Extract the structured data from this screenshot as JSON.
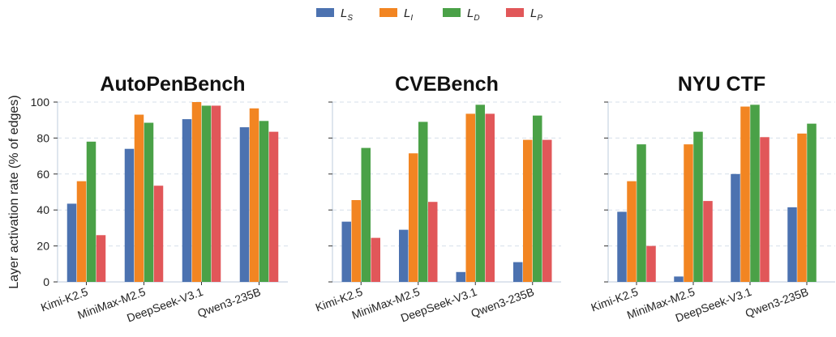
{
  "chart_data": [
    {
      "type": "bar",
      "title": "AutoPenBench",
      "ylabel": "Layer activation rate (% of edges)",
      "ylim": [
        0,
        100
      ],
      "yticks": [
        0,
        20,
        40,
        60,
        80,
        100
      ],
      "categories": [
        "Kimi-K2.5",
        "MiniMax-M2.5",
        "DeepSeek-V3.1",
        "Qwen3-235B"
      ],
      "series": [
        {
          "name": "L_S",
          "values": [
            43.5,
            74,
            90.5,
            86
          ]
        },
        {
          "name": "L_I",
          "values": [
            56,
            93,
            100,
            96.5
          ]
        },
        {
          "name": "L_D",
          "values": [
            78,
            88.5,
            98,
            89.5
          ]
        },
        {
          "name": "L_P",
          "values": [
            26,
            53.5,
            98,
            83.5
          ]
        }
      ],
      "grid": "horizontal-dashed"
    },
    {
      "type": "bar",
      "title": "CVEBench",
      "ylim": [
        0,
        100
      ],
      "yticks": [
        0,
        20,
        40,
        60,
        80,
        100
      ],
      "categories": [
        "Kimi-K2.5",
        "MiniMax-M2.5",
        "DeepSeek-V3.1",
        "Qwen3-235B"
      ],
      "series": [
        {
          "name": "L_S",
          "values": [
            33.5,
            29,
            5.5,
            11
          ]
        },
        {
          "name": "L_I",
          "values": [
            45.5,
            71.5,
            93.5,
            79
          ]
        },
        {
          "name": "L_D",
          "values": [
            74.5,
            89,
            98.5,
            92.5
          ]
        },
        {
          "name": "L_P",
          "values": [
            24.5,
            44.5,
            93.5,
            79
          ]
        }
      ],
      "grid": "horizontal-dashed"
    },
    {
      "type": "bar",
      "title": "NYU CTF",
      "ylim": [
        0,
        100
      ],
      "yticks": [
        0,
        20,
        40,
        60,
        80,
        100
      ],
      "categories": [
        "Kimi-K2.5",
        "MiniMax-M2.5",
        "DeepSeek-V3.1",
        "Qwen3-235B"
      ],
      "series": [
        {
          "name": "L_S",
          "values": [
            39,
            3,
            60,
            41.5
          ]
        },
        {
          "name": "L_I",
          "values": [
            56,
            76.5,
            97.5,
            82.5
          ]
        },
        {
          "name": "L_D",
          "values": [
            76.5,
            83.5,
            98.5,
            88
          ]
        },
        {
          "name": "L_P",
          "values": [
            20,
            45,
            80.5,
            0
          ]
        }
      ],
      "grid": "horizontal-dashed"
    }
  ],
  "legend": {
    "placement": "top-center",
    "items": [
      {
        "main": "L",
        "sub": "S",
        "color": "#4c72b0"
      },
      {
        "main": "L",
        "sub": "I",
        "color": "#f28522"
      },
      {
        "main": "L",
        "sub": "D",
        "color": "#4aa147"
      },
      {
        "main": "L",
        "sub": "P",
        "color": "#e15759"
      }
    ]
  },
  "colors": {
    "L_S": "#4c72b0",
    "L_I": "#f28522",
    "L_D": "#4aa147",
    "L_P": "#e15759",
    "axis": "#c9d4e3",
    "grid": "#d6dfea"
  }
}
